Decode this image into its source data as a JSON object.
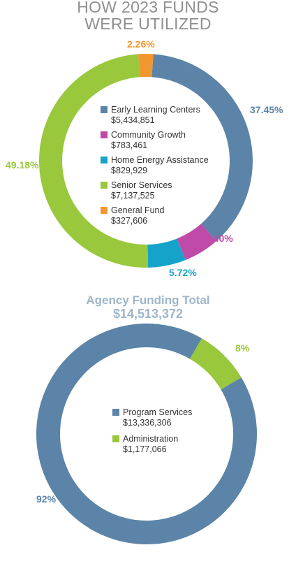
{
  "title_lines": [
    "HOW 2023 FUNDS",
    "WERE UTILIZED"
  ],
  "chart_data": [
    {
      "type": "pie",
      "donut": true,
      "title": "HOW 2023 FUNDS WERE UTILIZED",
      "series": [
        {
          "name": "Early Learning Centers",
          "display_value": "$5,434,851",
          "value": 5434851,
          "percent": 37.45,
          "percent_label": "37.45%",
          "color": "#5b84a8"
        },
        {
          "name": "Community Growth",
          "display_value": "$783,461",
          "value": 783461,
          "percent": 5.4,
          "percent_label": "5.40%",
          "color": "#c04aa7"
        },
        {
          "name": "Home Energy Assistance",
          "display_value": "$829,929",
          "value": 829929,
          "percent": 5.72,
          "percent_label": "5.72%",
          "color": "#16a3c9"
        },
        {
          "name": "Senior Services",
          "display_value": "$7,137,525",
          "value": 7137525,
          "percent": 49.18,
          "percent_label": "49.18%",
          "color": "#99c83c"
        },
        {
          "name": "General Fund",
          "display_value": "$327,606",
          "value": 327606,
          "percent": 2.26,
          "percent_label": "2.26%",
          "color": "#f2962e"
        }
      ]
    },
    {
      "type": "pie",
      "donut": true,
      "title": "Agency Funding Total",
      "subtitle": "$14,513,372",
      "series": [
        {
          "name": "Program Services",
          "display_value": "$13,336,306",
          "value": 13336306,
          "percent": 92,
          "percent_label": "92%",
          "color": "#5b84a8"
        },
        {
          "name": "Administration",
          "display_value": "$1,177,066",
          "value": 1177066,
          "percent": 8,
          "percent_label": "8%",
          "color": "#99c83c"
        }
      ]
    }
  ]
}
